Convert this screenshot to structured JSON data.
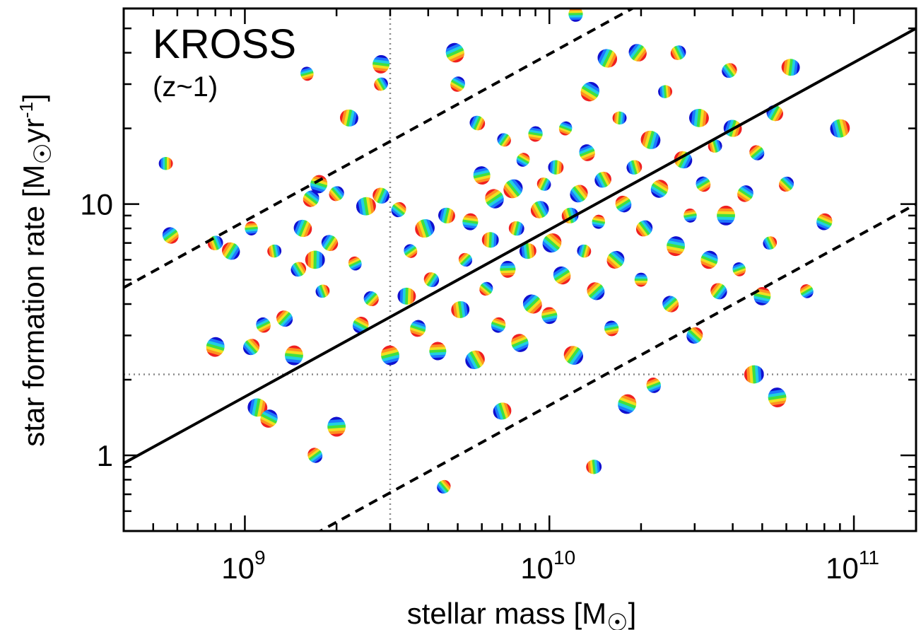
{
  "chart_data": {
    "type": "scatter",
    "title": "KROSS",
    "subtitle": "(z~1)",
    "xlabel": "stellar mass [M",
    "xlabel_suffix": "]",
    "ylabel": "star formation rate [M",
    "ylabel_unit": "yr",
    "ylabel_unit_exp": "-1",
    "ylabel_suffix": "]",
    "x_scale": "log",
    "y_scale": "log",
    "xlim": [
      400000000.0,
      160000000000.0
    ],
    "ylim": [
      0.5,
      60
    ],
    "x_ticks": [
      {
        "value": 1000000000.0,
        "base": "10",
        "exp": "9"
      },
      {
        "value": 10000000000.0,
        "base": "10",
        "exp": "10"
      },
      {
        "value": 100000000000.0,
        "base": "10",
        "exp": "11"
      }
    ],
    "y_ticks": [
      {
        "value": 1,
        "label": "1"
      },
      {
        "value": 10,
        "label": "10"
      }
    ],
    "reference_lines": {
      "main_sequence": {
        "style": "solid",
        "points": [
          [
            400000000.0,
            0.93
          ],
          [
            160000000000.0,
            50
          ]
        ]
      },
      "upper_bound": {
        "style": "dashed",
        "points": [
          [
            400000000.0,
            4.65
          ],
          [
            160000000000.0,
            250
          ]
        ]
      },
      "lower_bound": {
        "style": "dashed",
        "points": [
          [
            400000000.0,
            0.186
          ],
          [
            160000000000.0,
            10
          ]
        ]
      },
      "mass_limit": {
        "style": "dotted",
        "x": 3000000000.0
      },
      "sfr_limit": {
        "style": "dotted",
        "y": 2.1
      }
    },
    "marker": "velocity-field thumbnails (blue-to-red rainbow)",
    "marker_colors": [
      "#1010d0",
      "#1e78ff",
      "#20d0e0",
      "#40e040",
      "#f0e020",
      "#ff9020",
      "#f02020"
    ],
    "points": [
      [
        550000000.0,
        14.5
      ],
      [
        570000000.0,
        7.5
      ],
      [
        800000000.0,
        2.7
      ],
      [
        800000000.0,
        7.0
      ],
      [
        900000000.0,
        6.5
      ],
      [
        1050000000.0,
        8.0
      ],
      [
        1050000000.0,
        2.7
      ],
      [
        1100000000.0,
        1.55
      ],
      [
        1150000000.0,
        3.3
      ],
      [
        1200000000.0,
        1.4
      ],
      [
        1250000000.0,
        6.5
      ],
      [
        1350000000.0,
        3.5
      ],
      [
        1450000000.0,
        2.5
      ],
      [
        1500000000.0,
        5.5
      ],
      [
        1550000000.0,
        8.0
      ],
      [
        1600000000.0,
        33
      ],
      [
        1650000000.0,
        10.5
      ],
      [
        1700000000.0,
        6.0
      ],
      [
        1700000000.0,
        1.0
      ],
      [
        1750000000.0,
        12
      ],
      [
        1800000000.0,
        4.5
      ],
      [
        1900000000.0,
        7.0
      ],
      [
        2000000000.0,
        1.3
      ],
      [
        2000000000.0,
        11
      ],
      [
        2200000000.0,
        22
      ],
      [
        2300000000.0,
        5.8
      ],
      [
        2400000000.0,
        3.3
      ],
      [
        2500000000.0,
        9.8
      ],
      [
        2600000000.0,
        4.2
      ],
      [
        2800000000.0,
        36
      ],
      [
        2800000000.0,
        30
      ],
      [
        2800000000.0,
        10.8
      ],
      [
        3000000000.0,
        2.5
      ],
      [
        3200000000.0,
        9.5
      ],
      [
        3400000000.0,
        4.3
      ],
      [
        3500000000.0,
        6.5
      ],
      [
        3700000000.0,
        3.2
      ],
      [
        3900000000.0,
        8.0
      ],
      [
        4100000000.0,
        5.0
      ],
      [
        4300000000.0,
        2.6
      ],
      [
        4500000000.0,
        0.75
      ],
      [
        4600000000.0,
        9.0
      ],
      [
        4900000000.0,
        40
      ],
      [
        5000000000.0,
        30
      ],
      [
        5100000000.0,
        3.8
      ],
      [
        5300000000.0,
        6.0
      ],
      [
        5500000000.0,
        8.5
      ],
      [
        5700000000.0,
        2.4
      ],
      [
        5800000000.0,
        21
      ],
      [
        6000000000.0,
        13
      ],
      [
        6200000000.0,
        4.6
      ],
      [
        6400000000.0,
        7.2
      ],
      [
        6600000000.0,
        10.5
      ],
      [
        6800000000.0,
        3.3
      ],
      [
        7000000000.0,
        1.5
      ],
      [
        7100000000.0,
        18
      ],
      [
        7300000000.0,
        5.5
      ],
      [
        7600000000.0,
        11.5
      ],
      [
        7800000000.0,
        8.0
      ],
      [
        8000000000.0,
        2.8
      ],
      [
        8200000000.0,
        15
      ],
      [
        8500000000.0,
        6.5
      ],
      [
        8800000000.0,
        4.0
      ],
      [
        9000000000.0,
        19
      ],
      [
        9300000000.0,
        9.5
      ],
      [
        9600000000.0,
        12
      ],
      [
        10000000000.0,
        3.6
      ],
      [
        10200000000.0,
        7.0
      ],
      [
        10500000000.0,
        14
      ],
      [
        11000000000.0,
        5.2
      ],
      [
        11300000000.0,
        20
      ],
      [
        11700000000.0,
        9.0
      ],
      [
        12000000000.0,
        2.5
      ],
      [
        12200000000.0,
        57
      ],
      [
        12500000000.0,
        11
      ],
      [
        13000000000.0,
        6.5
      ],
      [
        13300000000.0,
        16
      ],
      [
        13600000000.0,
        28
      ],
      [
        14000000000.0,
        0.9
      ],
      [
        14200000000.0,
        4.5
      ],
      [
        14500000000.0,
        8.5
      ],
      [
        15000000000.0,
        12.5
      ],
      [
        15500000000.0,
        38
      ],
      [
        16000000000.0,
        3.2
      ],
      [
        16500000000.0,
        6.0
      ],
      [
        17000000000.0,
        22
      ],
      [
        17500000000.0,
        10
      ],
      [
        18000000000.0,
        1.6
      ],
      [
        19000000000.0,
        14
      ],
      [
        19500000000.0,
        40
      ],
      [
        20000000000.0,
        5.0
      ],
      [
        20500000000.0,
        8.0
      ],
      [
        21500000000.0,
        18
      ],
      [
        22000000000.0,
        1.9
      ],
      [
        23000000000.0,
        11.5
      ],
      [
        24000000000.0,
        28
      ],
      [
        25000000000.0,
        4.0
      ],
      [
        26000000000.0,
        6.8
      ],
      [
        26500000000.0,
        40
      ],
      [
        27500000000.0,
        15
      ],
      [
        29000000000.0,
        9.0
      ],
      [
        30000000000.0,
        3.0
      ],
      [
        31000000000.0,
        22
      ],
      [
        32000000000.0,
        12
      ],
      [
        33500000000.0,
        6.0
      ],
      [
        35000000000.0,
        17
      ],
      [
        36000000000.0,
        4.5
      ],
      [
        38000000000.0,
        9.0
      ],
      [
        39000000000.0,
        34
      ],
      [
        40000000000.0,
        20
      ],
      [
        42000000000.0,
        5.5
      ],
      [
        44000000000.0,
        11
      ],
      [
        47000000000.0,
        2.1
      ],
      [
        48000000000.0,
        16
      ],
      [
        50000000000.0,
        4.3
      ],
      [
        53000000000.0,
        7.0
      ],
      [
        55000000000.0,
        23
      ],
      [
        56000000000.0,
        1.7
      ],
      [
        60000000000.0,
        12
      ],
      [
        62000000000.0,
        35
      ],
      [
        70000000000.0,
        4.5
      ],
      [
        80000000000.0,
        8.5
      ],
      [
        90000000000.0,
        20
      ]
    ]
  }
}
